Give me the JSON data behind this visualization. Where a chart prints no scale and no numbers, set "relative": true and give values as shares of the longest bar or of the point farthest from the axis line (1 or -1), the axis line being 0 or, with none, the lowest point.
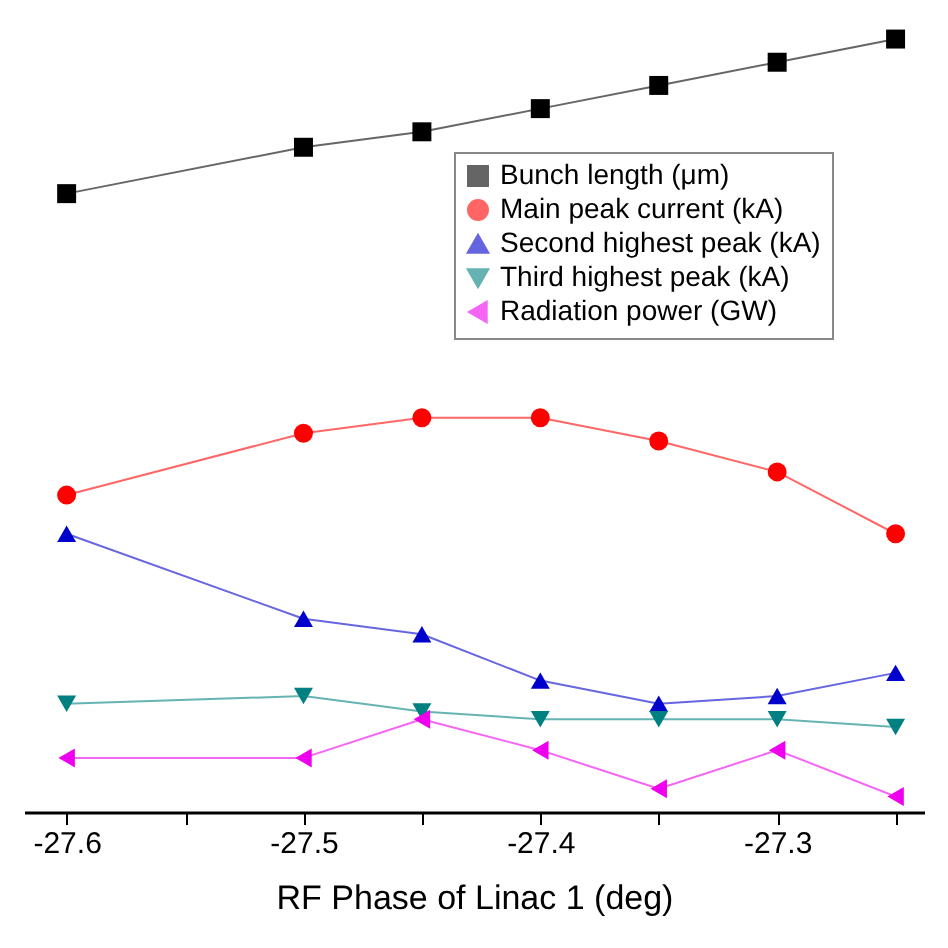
{
  "chart_data": {
    "type": "line",
    "xlabel": "RF Phase of Linac 1 (deg)",
    "relative": true,
    "x": [
      -27.6,
      -27.5,
      -27.45,
      -27.4,
      -27.35,
      -27.3,
      -27.25
    ],
    "xlim": [
      -27.618,
      -27.238
    ],
    "xticks": [
      -27.6,
      {
        "value": -27.55,
        "label": null
      },
      -27.5,
      {
        "value": -27.45,
        "label": null
      },
      -27.4,
      {
        "value": -27.35,
        "label": null
      },
      -27.3,
      {
        "value": -27.25,
        "label": null
      }
    ],
    "legend": "top right",
    "grid": false,
    "tick_labels": "x",
    "series": [
      {
        "name": "Bunch length (μm)",
        "color": "#000000",
        "marker": "square",
        "values": [
          0.8,
          0.86,
          0.88,
          0.91,
          0.94,
          0.97,
          1.0
        ]
      },
      {
        "name": "Main peak current (kA)",
        "color": "#ff0000",
        "marker": "circle",
        "values": [
          0.41,
          0.49,
          0.51,
          0.51,
          0.48,
          0.44,
          0.36
        ]
      },
      {
        "name": "Second highest peak (kA)",
        "color": "#0000cc",
        "marker": "triangle",
        "values": [
          0.36,
          0.25,
          0.23,
          0.17,
          0.14,
          0.15,
          0.18
        ]
      },
      {
        "name": "Third highest peak (kA)",
        "color": "#008080",
        "marker": "triangle-down",
        "values": [
          0.14,
          0.15,
          0.13,
          0.12,
          0.12,
          0.12,
          0.11
        ]
      },
      {
        "name": "Radiation power (GW)",
        "color": "#ee00ee",
        "marker": "triangle-left",
        "values": [
          0.07,
          0.07,
          0.12,
          0.08,
          0.03,
          0.08,
          0.02
        ]
      }
    ]
  }
}
